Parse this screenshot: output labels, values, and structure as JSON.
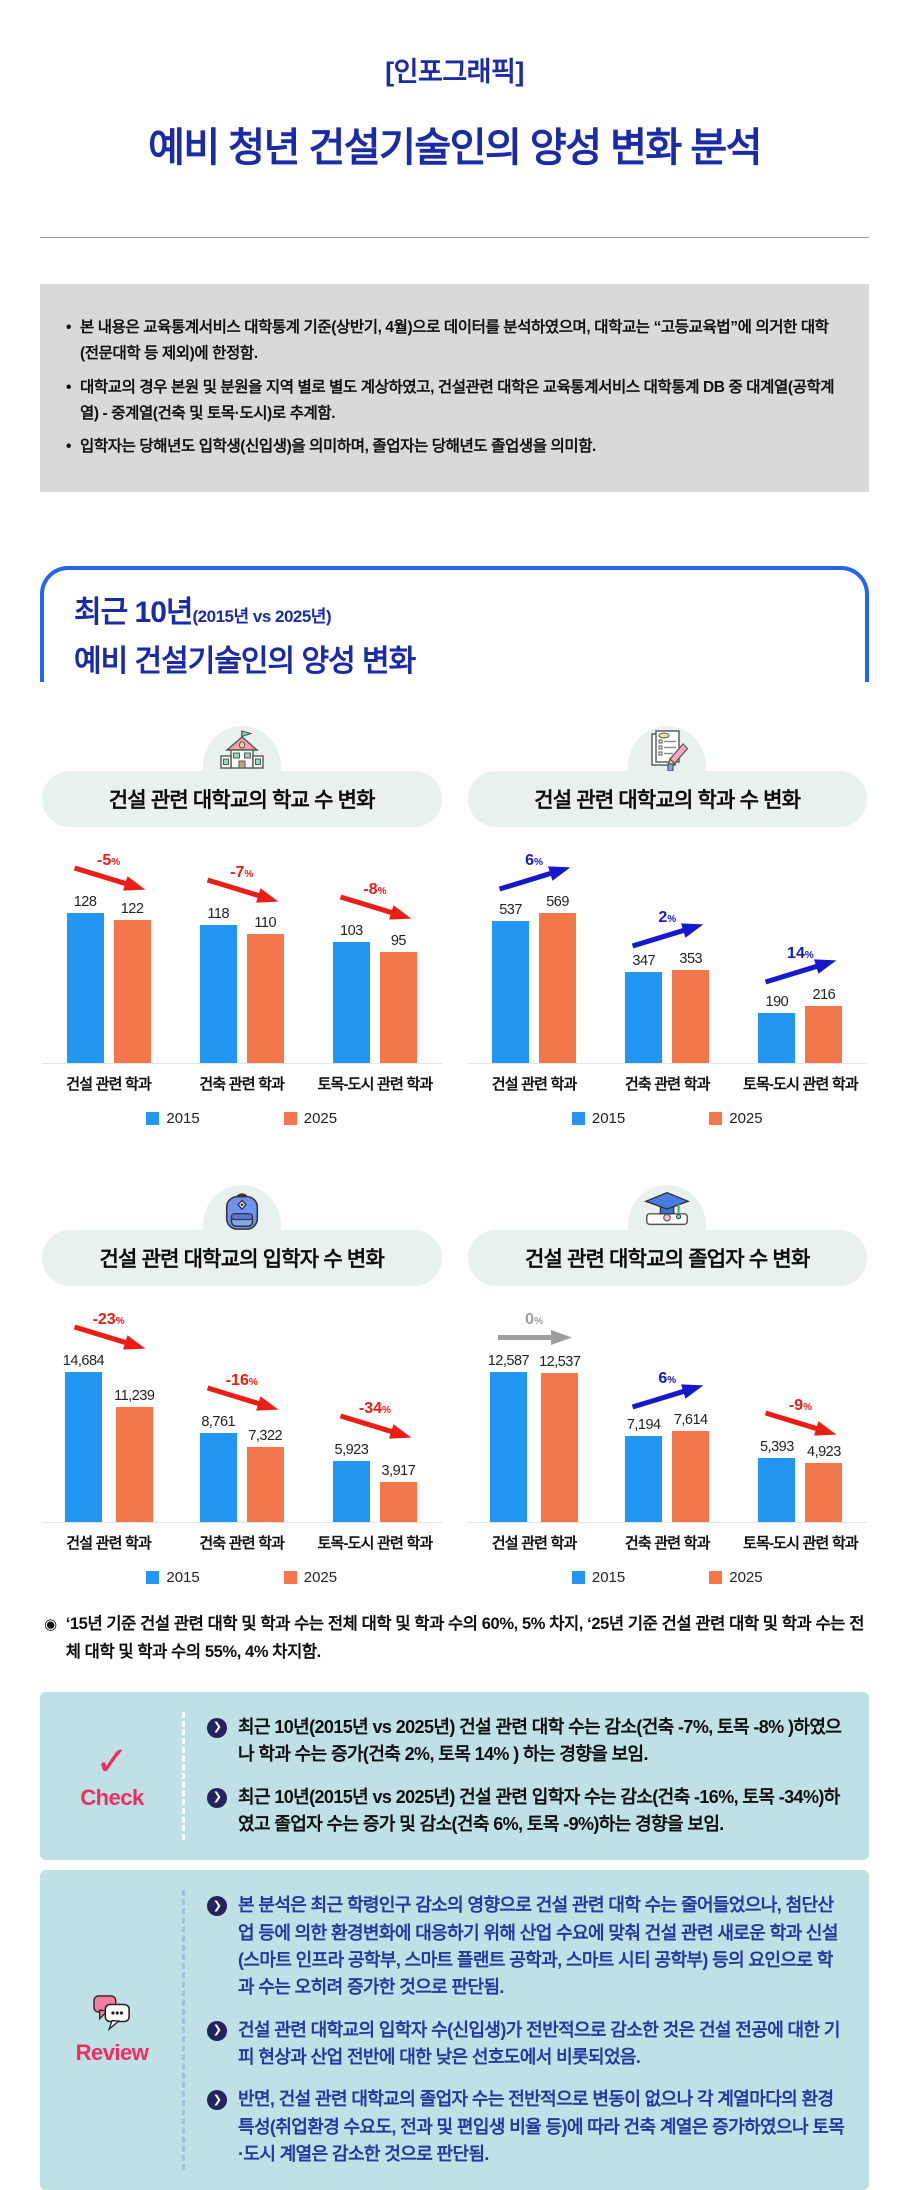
{
  "header": {
    "kicker": "[인포그래픽]",
    "title": "예비 청년 건설기술인의 양성 변화 분석"
  },
  "notes": {
    "items": [
      "본 내용은 교육통계서비스 대학통계 기준(상반기, 4월)으로 데이터를 분석하였으며, 대학교는 “고등교육법”에 의거한 대학(전문대학 등 제외)에 한정함.",
      "대학교의 경우 본원 및 분원을 지역 별로 별도 계상하였고, 건설관련 대학은 교육통계서비스 대학통계 DB 중 대계열(공학계열) - 중계열(건축 및 토목·도시)로 추계함.",
      "입학자는 당해년도 입학생(신입생)을 의미하며, 졸업자는 당해년도 졸업생을 의미함."
    ]
  },
  "section": {
    "title_big": "최근 10년",
    "title_paren": "(2015년 vs 2025년)",
    "title_line2": "예비 건설기술인의 양성 변화"
  },
  "legend": {
    "labels": [
      "2015",
      "2025"
    ]
  },
  "chart_data": [
    {
      "type": "bar",
      "title": "건설 관련 대학교의 학교 수 변화",
      "title_strong": "건설 관련",
      "title_rest": " 대학교의 학교 수 변화",
      "icon": "school-icon",
      "categories": [
        "건설 관련 학과",
        "건축 관련 학과",
        "토목-도시 관련 학과"
      ],
      "series": [
        {
          "name": "2015",
          "values": [
            128,
            118,
            103
          ]
        },
        {
          "name": "2025",
          "values": [
            122,
            110,
            95
          ]
        }
      ],
      "changes": [
        "-5%",
        "-7%",
        "-8%"
      ],
      "ylim": [
        0,
        128
      ],
      "grid": false,
      "legend_position": "bottom"
    },
    {
      "type": "bar",
      "title": "건설 관련 대학교의 학과 수 변화",
      "title_strong": "건설 관련",
      "title_rest": " 대학교의 학과 수 변화",
      "icon": "document-pencil-icon",
      "categories": [
        "건설 관련 학과",
        "건축 관련 학과",
        "토목-도시 관련 학과"
      ],
      "series": [
        {
          "name": "2015",
          "values": [
            537,
            347,
            190
          ]
        },
        {
          "name": "2025",
          "values": [
            569,
            353,
            216
          ]
        }
      ],
      "changes": [
        "6%",
        "2%",
        "14%"
      ],
      "ylim": [
        0,
        569
      ],
      "grid": false,
      "legend_position": "bottom"
    },
    {
      "type": "bar",
      "title": "건설 관련 대학교의 입학자 수 변화",
      "title_strong": "건설 관련",
      "title_rest": " 대학교의 입학자 수 변화",
      "icon": "backpack-icon",
      "categories": [
        "건설 관련 학과",
        "건축 관련 학과",
        "토목-도시 관련 학과"
      ],
      "series": [
        {
          "name": "2015",
          "values": [
            14684,
            8761,
            5923
          ]
        },
        {
          "name": "2025",
          "values": [
            11239,
            7322,
            3917
          ]
        }
      ],
      "changes": [
        "-23%",
        "-16%",
        "-34%"
      ],
      "ylim": [
        0,
        14684
      ],
      "grid": false,
      "legend_position": "bottom"
    },
    {
      "type": "bar",
      "title": "건설 관련 대학교의 졸업자 수 변화",
      "title_strong": "건설 관련",
      "title_rest": " 대학교의 졸업자 수 변화",
      "icon": "graduation-cap-icon",
      "categories": [
        "건설 관련 학과",
        "건축 관련 학과",
        "토목-도시 관련 학과"
      ],
      "series": [
        {
          "name": "2015",
          "values": [
            12587,
            7194,
            5393
          ]
        },
        {
          "name": "2025",
          "values": [
            12537,
            7614,
            4923
          ]
        }
      ],
      "changes": [
        "0%",
        "6%",
        "-9%"
      ],
      "ylim": [
        0,
        12587
      ],
      "grid": false,
      "legend_position": "bottom"
    }
  ],
  "footnote": {
    "text": "‘15년 기준 건설 관련 대학 및 학과 수는 전체 대학 및 학과 수의 60%, 5% 차지, ‘25년 기준 건설 관련 대학 및 학과 수는 전체 대학 및 학과 수의 55%, 4% 차지함."
  },
  "check": {
    "label": "Check",
    "items": [
      "최근 10년(2015년 vs 2025년) 건설 관련 대학 수는 감소(건축 -7%, 토목 -8% )하였으나 학과 수는 증가(건축 2%, 토목 14% ) 하는 경향을 보임.",
      "최근 10년(2015년 vs 2025년) 건설 관련 입학자 수는 감소(건축 -16%, 토목 -34%)하였고 졸업자 수는 증가 및 감소(건축 6%, 토목 -9%)하는 경향을 보임."
    ]
  },
  "review": {
    "label": "Review",
    "items": [
      "본 분석은 최근 학령인구 감소의 영향으로 건설 관련 대학 수는 줄어들었으나, 첨단산업 등에 의한 환경변화에 대응하기 위해 산업 수요에 맞춰 건설 관련 새로운 학과 신설(스마트 인프라 공학부, 스마트 플랜트 공학과, 스마트 시티 공학부) 등의 요인으로 학과 수는 오히려 증가한 것으로 판단됨.",
      "건설 관련 대학교의 입학자 수(신입생)가 전반적으로 감소한 것은 건설 전공에 대한 기피 현상과 산업 전반에 대한 낮은 선호도에서 비롯되었음.",
      "반면, 건설 관련 대학교의 졸업자 수는 전반적으로 변동이 없으나 각 계열마다의 환경 특성(취업환경 수요도, 전과 및 편입생 비율 등)에 따라 건축 계열은 증가하였으나 토목·도시 계열은 감소한 것으로 판단됨."
    ]
  },
  "colors": {
    "title_navy": "#1b2aa6",
    "frame_blue": "#2166f0",
    "bar_2015": "#2196f3",
    "bar_2025": "#f4764b",
    "arrow_down_red": "#ed1c16",
    "arrow_up_blue": "#1717cf",
    "arrow_flat_gray": "#9e9e9e",
    "notes_gray": "#d9d9d9",
    "box_teal": "#bfe0e4",
    "accent_pink": "#ed2e63",
    "capsule_mint": "#e9f1ef"
  }
}
